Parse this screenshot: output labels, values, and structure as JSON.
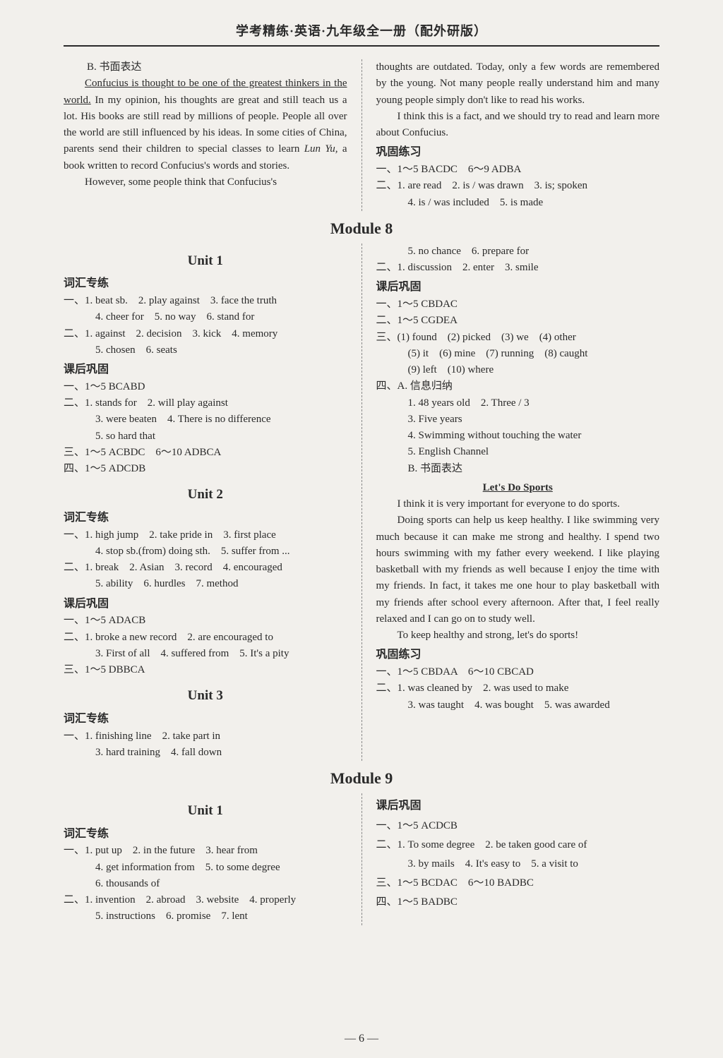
{
  "header": "学考精练·英语·九年级全一册（配外研版）",
  "topLeft": {
    "b_label": "B. 书面表达",
    "p1a": "Confucius is thought to be one of the greatest thinkers in the world.",
    "p1b": " In my opinion, his thoughts are great and still teach us a lot. His books are still read by millions of people. People all over the world are still influenced by his ideas. In some cities of China, parents send their children to special classes to learn ",
    "p1c": "Lun Yu,",
    "p1d": " a book written to record Confucius's words and stories.",
    "p2": "However, some people think that Confucius's"
  },
  "topRight": {
    "p1": "thoughts are outdated. Today, only a few words are remembered by the young. Not many people really understand him and many young people simply don't like to read his works.",
    "p2": "I think this is a fact, and we should try to read and learn more about Confucius.",
    "hd": "巩固练习",
    "l1": "一、1～5 BACDC　6～9 ADBA",
    "l2": "二、1. are read　2. is / was drawn　3. is; spoken",
    "l3": "4. is / was included　5. is made"
  },
  "mod8": {
    "title": "Module 8",
    "left": {
      "u1": "Unit 1",
      "hd1": "词汇专练",
      "u1_1": "一、1. beat sb.　2. play against　3. face the truth",
      "u1_2": "4. cheer for　5. no way　6. stand for",
      "u1_3": "二、1. against　2. decision　3. kick　4. memory",
      "u1_4": "5. chosen　6. seats",
      "hd2": "课后巩固",
      "u1_5": "一、1～5 BCABD",
      "u1_6": "二、1. stands for　2. will play against",
      "u1_7": "3. were beaten　4. There is no difference",
      "u1_8": "5. so hard that",
      "u1_9": "三、1～5 ACBDC　6～10 ADBCA",
      "u1_10": "四、1～5 ADCDB",
      "u2": "Unit 2",
      "hd3": "词汇专练",
      "u2_1": "一、1. high jump　2. take pride in　3. first place",
      "u2_2": "4. stop sb.(from) doing sth.　5. suffer from ...",
      "u2_3": "二、1. break　2. Asian　3. record　4. encouraged",
      "u2_4": "5. ability　6. hurdles　7. method",
      "hd4": "课后巩固",
      "u2_5": "一、1～5 ADACB",
      "u2_6": "二、1. broke a new record　2. are encouraged to",
      "u2_7": "3. First of all　4. suffered from　5. It's a pity",
      "u2_8": "三、1～5 DBBCA",
      "u3": "Unit 3",
      "hd5": "词汇专练",
      "u3_1": "一、1. finishing line　2. take part in",
      "u3_2": "3. hard training　4. fall down"
    },
    "right": {
      "r1": "5. no chance　6. prepare for",
      "r2": "二、1. discussion　2. enter　3. smile",
      "hd1": "课后巩固",
      "r3": "一、1～5 CBDAC",
      "r4": "二、1～5 CGDEA",
      "r5": "三、(1) found　(2) picked　(3) we　(4) other",
      "r6": "(5) it　(6) mine　(7) running　(8) caught",
      "r7": "(9) left　(10) where",
      "r8": "四、A. 信息归纳",
      "r9": "1. 48 years old　2. Three / 3",
      "r10": "3. Five years",
      "r11": "4. Swimming without touching the water",
      "r12": "5. English Channel",
      "r13": "B. 书面表达",
      "essay_title": "Let's Do Sports",
      "essay_p1": "I think it is very important for everyone to do sports.",
      "essay_p2": "Doing sports can help us keep healthy. I like swimming very much because it can make me strong and healthy. I spend two hours swimming with my father every weekend. I like playing basketball with my friends as well because I enjoy the time with my friends. In fact, it takes me one hour to play basketball with my friends after school every afternoon. After that, I feel really relaxed and I can go on to study well.",
      "essay_p3": "To keep healthy and strong, let's do sports!",
      "hd2": "巩固练习",
      "r14": "一、1～5 CBDAA　6～10 CBCAD",
      "r15": "二、1. was cleaned by　2. was used to make",
      "r16": "3. was taught　4. was bought　5. was awarded"
    }
  },
  "mod9": {
    "title": "Module 9",
    "left": {
      "u1": "Unit 1",
      "hd1": "词汇专练",
      "l1": "一、1. put up　2. in the future　3. hear from",
      "l2": "4. get information from　5. to some degree",
      "l3": "6. thousands of",
      "l4": "二、1. invention　2. abroad　3. website　4. properly",
      "l5": "5. instructions　6. promise　7. lent"
    },
    "right": {
      "hd1": "课后巩固",
      "r1": "一、1～5 ACDCB",
      "r2": "二、1. To some degree　2. be taken good care of",
      "r3": "3. by mails　4. It's easy to　5. a visit to",
      "r4": "三、1～5 BCDAC　6～10 BADBC",
      "r5": "四、1～5 BADBC"
    }
  },
  "page_num": "— 6 —"
}
